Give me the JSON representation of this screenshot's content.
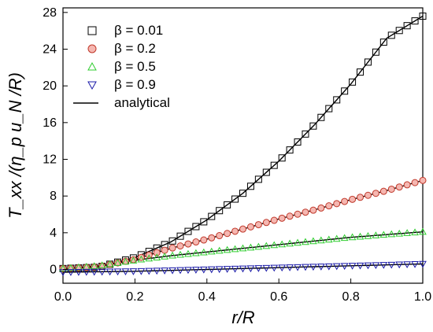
{
  "chart_data": {
    "type": "scatter",
    "xlabel": "r/R",
    "ylabel": "T_xx /(η_p u_N /R)",
    "xlim": [
      0.0,
      1.0
    ],
    "ylim": [
      -1.5,
      28.5
    ],
    "xticks": [
      0.0,
      0.2,
      0.4,
      0.6,
      0.8,
      1.0
    ],
    "yticks": [
      0,
      4,
      8,
      12,
      16,
      20,
      24,
      28
    ],
    "x_tick_labels": [
      "0.0",
      "0.2",
      "0.4",
      "0.6",
      "0.8",
      "1.0"
    ],
    "y_tick_labels": [
      "0",
      "4",
      "8",
      "12",
      "16",
      "20",
      "24",
      "28"
    ],
    "legend_position": "top-left",
    "series": [
      {
        "name": "β = 0.01",
        "marker": "square",
        "color": "#000000",
        "fill": "none",
        "points": [
          [
            0.0,
            0.1
          ],
          [
            0.1,
            0.25
          ],
          [
            0.2,
            1.3
          ],
          [
            0.3,
            3.0
          ],
          [
            0.4,
            5.4
          ],
          [
            0.5,
            8.3
          ],
          [
            0.6,
            11.8
          ],
          [
            0.7,
            15.8
          ],
          [
            0.8,
            20.2
          ],
          [
            0.9,
            25.2
          ],
          [
            1.0,
            27.6
          ]
        ]
      },
      {
        "name": "β = 0.2",
        "marker": "circle",
        "color": "#c0392b",
        "fill": "#f5b7b1",
        "points": [
          [
            0.0,
            0.1
          ],
          [
            0.1,
            0.3
          ],
          [
            0.2,
            1.1
          ],
          [
            0.3,
            2.3
          ],
          [
            0.4,
            3.3
          ],
          [
            0.5,
            4.4
          ],
          [
            0.6,
            5.5
          ],
          [
            0.7,
            6.5
          ],
          [
            0.8,
            7.6
          ],
          [
            0.9,
            8.6
          ],
          [
            1.0,
            9.7
          ]
        ]
      },
      {
        "name": "β = 0.5",
        "marker": "triangle-up",
        "color": "#2ecc2e",
        "fill": "none",
        "points": [
          [
            0.0,
            0.1
          ],
          [
            0.1,
            0.4
          ],
          [
            0.2,
            1.0
          ],
          [
            0.3,
            1.5
          ],
          [
            0.4,
            1.9
          ],
          [
            0.5,
            2.3
          ],
          [
            0.6,
            2.7
          ],
          [
            0.7,
            3.1
          ],
          [
            0.8,
            3.5
          ],
          [
            0.9,
            3.8
          ],
          [
            1.0,
            4.1
          ]
        ]
      },
      {
        "name": "β = 0.9",
        "marker": "triangle-down",
        "color": "#1a1aa8",
        "fill": "none",
        "points": [
          [
            0.0,
            -0.3
          ],
          [
            0.2,
            -0.2
          ],
          [
            0.4,
            0.0
          ],
          [
            0.6,
            0.2
          ],
          [
            0.8,
            0.4
          ],
          [
            1.0,
            0.6
          ]
        ]
      },
      {
        "name": "analytical",
        "marker": "line",
        "color": "#000000"
      }
    ]
  }
}
